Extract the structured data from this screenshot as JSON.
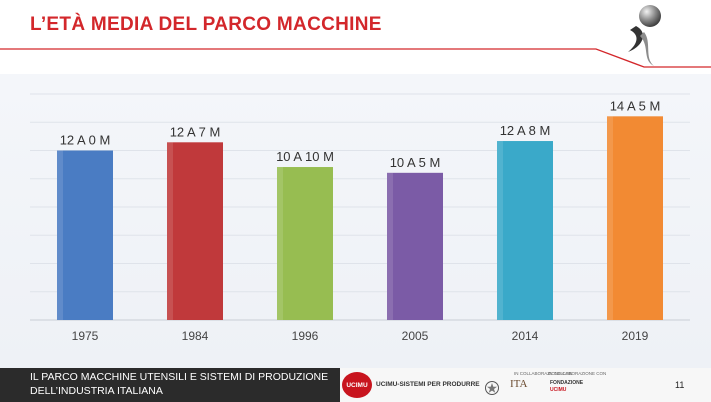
{
  "slide": {
    "title": "L’ETÀ MEDIA DEL PARCO MACCHINE",
    "title_color": "#d3272b",
    "accent_color": "#d3272b",
    "logo_icon": "sphere-swoosh-logo-icon"
  },
  "chart_data": {
    "type": "bar",
    "categories": [
      "1975",
      "1984",
      "1996",
      "2005",
      "2014",
      "2019"
    ],
    "values": [
      12.0,
      12.58,
      10.83,
      10.42,
      12.67,
      14.42
    ],
    "data_labels": [
      "12 A 0 M",
      "12 A 7 M",
      "10 A 10 M",
      "10 A 5 M",
      "12 A 8 M",
      "14 A 5 M"
    ],
    "colors": [
      "#4a7cc3",
      "#c0393b",
      "#97bd51",
      "#7b5ba6",
      "#3aa9c9",
      "#f28a33"
    ],
    "ylim": [
      0,
      16
    ],
    "grid": true,
    "legend": false,
    "title": "",
    "xlabel": "",
    "ylabel": ""
  },
  "footer": {
    "line1": "IL PARCO MACCHINE UTENSILI E SISTEMI DI PRODUZIONE",
    "line2": "DELL’INDUSTRIA ITALIANA",
    "logo_text": "UCIMU",
    "brand": "UCIMU-SISTEMI PER PRODURRE",
    "partner_caption_1": "IN COLLABORAZIONE CON",
    "partner_name": "ITA",
    "partner_caption_2": "IN COLLABORAZIONE CON",
    "partner_fond_1": "FONDAZIONE",
    "partner_fond_2": "UCIMU",
    "page_number": "11"
  }
}
